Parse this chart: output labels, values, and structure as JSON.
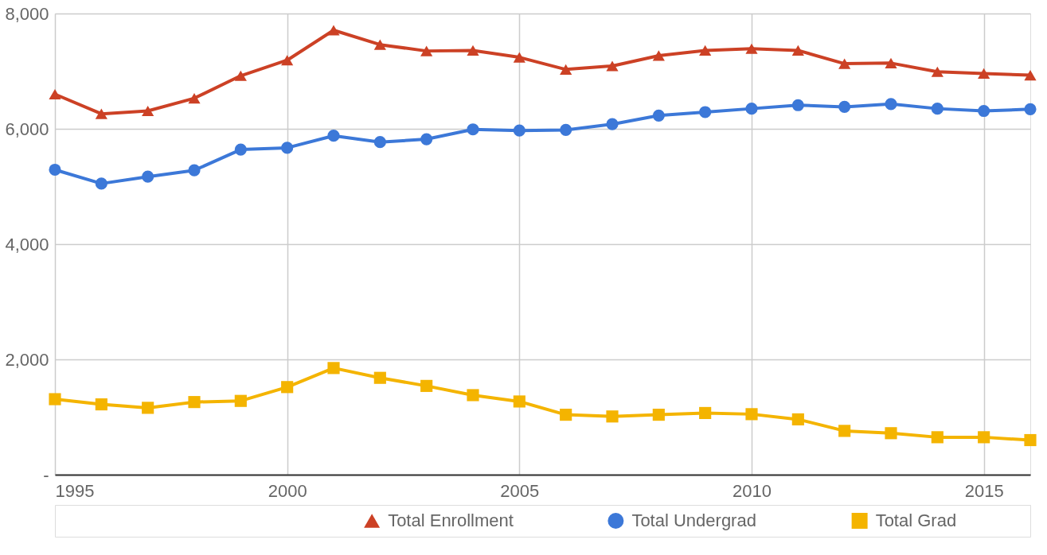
{
  "chart_data": {
    "type": "line",
    "x": [
      1995,
      1996,
      1997,
      1998,
      1999,
      2000,
      2001,
      2002,
      2003,
      2004,
      2005,
      2006,
      2007,
      2008,
      2009,
      2010,
      2011,
      2012,
      2013,
      2014,
      2015,
      2016
    ],
    "series": [
      {
        "name": "Total Enrollment",
        "color": "#cc4125",
        "marker": "triangle",
        "values": [
          6600,
          6260,
          6310,
          6530,
          6920,
          7190,
          7710,
          7460,
          7350,
          7360,
          7240,
          7030,
          7090,
          7270,
          7360,
          7390,
          7360,
          7130,
          7140,
          6990,
          6960,
          6930
        ]
      },
      {
        "name": "Total Undergrad",
        "color": "#3c78d8",
        "marker": "circle",
        "values": [
          5290,
          5050,
          5170,
          5280,
          5640,
          5670,
          5880,
          5770,
          5820,
          5990,
          5970,
          5980,
          6080,
          6230,
          6290,
          6350,
          6410,
          6380,
          6430,
          6350,
          6310,
          6340
        ]
      },
      {
        "name": "Total Grad",
        "color": "#f4b400",
        "marker": "square",
        "values": [
          1310,
          1220,
          1160,
          1260,
          1280,
          1520,
          1850,
          1680,
          1540,
          1380,
          1270,
          1040,
          1010,
          1040,
          1070,
          1050,
          960,
          760,
          720,
          650,
          650,
          600
        ]
      }
    ],
    "xlim": [
      1995,
      2016
    ],
    "xticks": [
      1995,
      2000,
      2005,
      2010,
      2015
    ],
    "ylim": [
      0,
      8000
    ],
    "yticks": [
      {
        "value": 0,
        "label": "-"
      },
      {
        "value": 2000,
        "label": "2,000"
      },
      {
        "value": 4000,
        "label": "4,000"
      },
      {
        "value": 6000,
        "label": "6,000"
      },
      {
        "value": 8000,
        "label": "8,000"
      }
    ],
    "grid": true,
    "legend": "bottom",
    "line_style": "solid"
  }
}
